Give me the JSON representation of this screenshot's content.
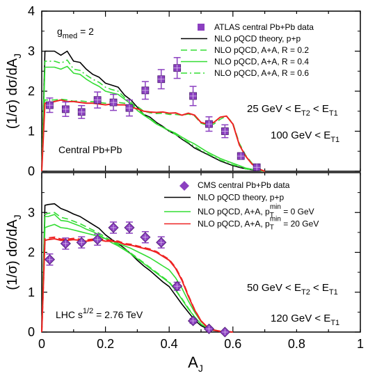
{
  "figure": {
    "x_axis_label": "A",
    "x_axis_label_sub": "J",
    "x_ticks": [
      "0",
      "0.2",
      "0.4",
      "0.6",
      "0.8",
      "1"
    ]
  },
  "chart_data": [
    {
      "type": "line",
      "panel": "top",
      "title": "",
      "xlabel": "A_J",
      "ylabel": "(1/σ) dσ/dA_J",
      "xlim": [
        0,
        1
      ],
      "ylim": [
        0,
        4
      ],
      "y_ticks": [
        "0",
        "1",
        "2",
        "3",
        "4"
      ],
      "grid": false,
      "legend_position": "top-right",
      "annotations": {
        "gmed": "g",
        "gmed_sub": "med",
        "gmed_value": " = 2",
        "cond1_a": "25 GeV < E",
        "cond1_sub_a": "T2",
        "cond1_b": " < E",
        "cond1_sub_b": "T1",
        "cond2_a": "100 GeV < E",
        "cond2_sub_a": "T1",
        "system": "Central Pb+Pb"
      },
      "data_series": {
        "name": "ATLAS central Pb+Pb data",
        "color": "#8b3fc0",
        "x": [
          0.025,
          0.075,
          0.125,
          0.175,
          0.225,
          0.275,
          0.325,
          0.375,
          0.425,
          0.475,
          0.525,
          0.575,
          0.625,
          0.675
        ],
        "y": [
          1.65,
          1.55,
          1.48,
          1.78,
          1.72,
          1.58,
          2.02,
          2.3,
          2.58,
          1.88,
          1.18,
          1.0,
          0.38,
          0.1
        ],
        "err": [
          0.18,
          0.18,
          0.16,
          0.2,
          0.2,
          0.2,
          0.22,
          0.24,
          0.26,
          0.24,
          0.18,
          0.16,
          0.08,
          0.05
        ]
      },
      "series": [
        {
          "name": "NLO pQCD theory, p+p",
          "color": "#000000",
          "dash": "solid",
          "x": [
            0.0,
            0.01,
            0.02,
            0.04,
            0.06,
            0.08,
            0.1,
            0.12,
            0.14,
            0.16,
            0.18,
            0.2,
            0.22,
            0.24,
            0.26,
            0.28,
            0.3,
            0.32,
            0.34,
            0.36,
            0.38,
            0.4,
            0.42,
            0.44,
            0.46,
            0.48,
            0.5,
            0.52,
            0.54,
            0.56,
            0.58,
            0.6,
            0.62,
            0.64,
            0.66,
            0.68,
            0.7
          ],
          "y": [
            0.0,
            3.0,
            3.0,
            3.0,
            2.9,
            3.0,
            2.75,
            2.72,
            2.55,
            2.42,
            2.35,
            2.2,
            2.15,
            2.1,
            1.9,
            1.78,
            1.6,
            1.42,
            1.35,
            1.22,
            1.12,
            1.0,
            0.92,
            0.8,
            0.7,
            0.58,
            0.5,
            0.42,
            0.34,
            0.26,
            0.2,
            0.14,
            0.1,
            0.06,
            0.04,
            0.02,
            0.0
          ]
        },
        {
          "name": "NLO pQCD, A+A, R = 0.2",
          "color": "#33dd33",
          "dash": "dash",
          "x": [
            0.0,
            0.01,
            0.02,
            0.04,
            0.06,
            0.08,
            0.1,
            0.12,
            0.14,
            0.16,
            0.18,
            0.2,
            0.22,
            0.24,
            0.26,
            0.28,
            0.3,
            0.32,
            0.34,
            0.36,
            0.38,
            0.4,
            0.42,
            0.44,
            0.46,
            0.48,
            0.5,
            0.52,
            0.54,
            0.56,
            0.58,
            0.6,
            0.62,
            0.64,
            0.66,
            0.68,
            0.7
          ],
          "y": [
            0.0,
            1.78,
            1.78,
            1.78,
            1.8,
            1.78,
            1.75,
            1.76,
            1.74,
            1.74,
            1.72,
            1.7,
            1.74,
            1.72,
            1.7,
            1.68,
            1.62,
            1.5,
            1.46,
            1.44,
            1.45,
            1.42,
            1.42,
            1.4,
            1.43,
            1.38,
            1.2,
            1.15,
            1.18,
            1.3,
            1.38,
            1.2,
            0.7,
            0.4,
            0.2,
            0.08,
            0.0
          ]
        },
        {
          "name": "NLO pQCD, A+A, R = 0.4",
          "color": "#33dd33",
          "dash": "solid",
          "x": [
            0.0,
            0.01,
            0.02,
            0.04,
            0.06,
            0.08,
            0.1,
            0.12,
            0.14,
            0.16,
            0.18,
            0.2,
            0.22,
            0.24,
            0.26,
            0.28,
            0.3,
            0.32,
            0.34,
            0.36,
            0.38,
            0.4,
            0.42,
            0.44,
            0.46,
            0.48,
            0.5,
            0.52,
            0.54,
            0.56,
            0.58,
            0.6,
            0.62,
            0.64,
            0.66,
            0.68,
            0.7
          ],
          "y": [
            0.0,
            2.6,
            2.6,
            2.6,
            2.55,
            2.62,
            2.45,
            2.42,
            2.3,
            2.2,
            2.12,
            2.0,
            1.96,
            1.92,
            1.8,
            1.68,
            1.52,
            1.4,
            1.3,
            1.18,
            1.1,
            1.02,
            0.95,
            0.85,
            0.76,
            0.68,
            0.58,
            0.48,
            0.4,
            0.32,
            0.26,
            0.2,
            0.14,
            0.08,
            0.05,
            0.02,
            0.0
          ]
        },
        {
          "name": "NLO pQCD, A+A, R = 0.6",
          "color": "#33dd33",
          "dash": "dashdot",
          "x": [
            0.0,
            0.01,
            0.02,
            0.04,
            0.06,
            0.08,
            0.1,
            0.12,
            0.14,
            0.16,
            0.18,
            0.2,
            0.22,
            0.24,
            0.26,
            0.28,
            0.3,
            0.32,
            0.34,
            0.36,
            0.38,
            0.4,
            0.42,
            0.44,
            0.46,
            0.48,
            0.5,
            0.52,
            0.54,
            0.56,
            0.58,
            0.6,
            0.62,
            0.64,
            0.66,
            0.68,
            0.7
          ],
          "y": [
            0.0,
            2.75,
            2.75,
            2.75,
            2.7,
            2.78,
            2.55,
            2.52,
            2.4,
            2.3,
            2.22,
            2.1,
            2.04,
            2.0,
            1.84,
            1.72,
            1.56,
            1.42,
            1.32,
            1.2,
            1.1,
            1.0,
            0.92,
            0.82,
            0.72,
            0.62,
            0.52,
            0.44,
            0.36,
            0.28,
            0.22,
            0.16,
            0.12,
            0.06,
            0.04,
            0.02,
            0.0
          ]
        },
        {
          "name": "",
          "color": "#ee2222",
          "dash": "solid",
          "x": [
            0.0,
            0.01,
            0.02,
            0.04,
            0.06,
            0.08,
            0.1,
            0.12,
            0.14,
            0.16,
            0.18,
            0.2,
            0.22,
            0.24,
            0.26,
            0.28,
            0.3,
            0.32,
            0.34,
            0.36,
            0.38,
            0.4,
            0.42,
            0.44,
            0.46,
            0.48,
            0.5,
            0.52,
            0.54,
            0.56,
            0.58,
            0.6,
            0.62,
            0.64,
            0.66,
            0.68,
            0.7
          ],
          "y": [
            0.0,
            1.7,
            1.7,
            1.74,
            1.78,
            1.74,
            1.74,
            1.72,
            1.7,
            1.7,
            1.68,
            1.66,
            1.68,
            1.66,
            1.66,
            1.6,
            1.56,
            1.5,
            1.48,
            1.47,
            1.48,
            1.45,
            1.46,
            1.4,
            1.45,
            1.4,
            1.22,
            1.18,
            1.22,
            1.35,
            1.38,
            1.18,
            0.66,
            0.38,
            0.18,
            0.06,
            0.0
          ]
        }
      ]
    },
    {
      "type": "line",
      "panel": "bottom",
      "title": "",
      "xlabel": "A_J",
      "ylabel": "(1/σ) dσ/dA_J",
      "xlim": [
        0,
        1
      ],
      "ylim": [
        0,
        4
      ],
      "y_ticks": [
        "0",
        "1",
        "2",
        "3"
      ],
      "grid": false,
      "legend_position": "top-right",
      "annotations": {
        "cond1_a": "50 GeV < E",
        "cond1_sub_a": "T2",
        "cond1_b": " < E",
        "cond1_sub_b": "T1",
        "cond2_a": "120 GeV < E",
        "cond2_sub_a": "T1",
        "lhc_a": "LHC s",
        "lhc_sup": "1/2",
        "lhc_b": " = 2.76 TeV"
      },
      "data_series": {
        "name": "CMS central Pb+Pb data",
        "color": "#8b3fc0",
        "x": [
          0.025,
          0.075,
          0.125,
          0.175,
          0.225,
          0.275,
          0.325,
          0.375,
          0.425,
          0.475,
          0.525,
          0.575
        ],
        "y": [
          1.82,
          2.22,
          2.25,
          2.32,
          2.62,
          2.62,
          2.38,
          2.25,
          1.15,
          0.28,
          0.08,
          0.0
        ],
        "err": [
          0.14,
          0.14,
          0.14,
          0.14,
          0.14,
          0.14,
          0.14,
          0.14,
          0.1,
          0.06,
          0.03,
          0.02
        ]
      },
      "series": [
        {
          "name": "NLO pQCD theory, p+p",
          "color": "#000000",
          "dash": "solid",
          "x": [
            0.0,
            0.01,
            0.02,
            0.04,
            0.06,
            0.08,
            0.1,
            0.12,
            0.14,
            0.16,
            0.18,
            0.2,
            0.22,
            0.24,
            0.26,
            0.28,
            0.3,
            0.32,
            0.34,
            0.36,
            0.38,
            0.4,
            0.42,
            0.44,
            0.46,
            0.48,
            0.5,
            0.52,
            0.54,
            0.56,
            0.58,
            0.6
          ],
          "y": [
            0.0,
            3.18,
            3.2,
            3.22,
            3.1,
            3.04,
            2.96,
            2.9,
            2.8,
            2.7,
            2.6,
            2.44,
            2.32,
            2.22,
            2.1,
            1.96,
            1.8,
            1.66,
            1.54,
            1.4,
            1.26,
            1.14,
            0.92,
            0.7,
            0.5,
            0.3,
            0.16,
            0.08,
            0.04,
            0.02,
            0.01,
            0.0
          ]
        },
        {
          "name": "NLO pQCD, A+A, p_T^min = 0 GeV",
          "color": "#33dd33",
          "dash": "solid",
          "x": [
            0.0,
            0.01,
            0.02,
            0.04,
            0.06,
            0.08,
            0.1,
            0.12,
            0.14,
            0.16,
            0.18,
            0.2,
            0.22,
            0.24,
            0.26,
            0.28,
            0.3,
            0.32,
            0.34,
            0.36,
            0.38,
            0.4,
            0.42,
            0.44,
            0.46,
            0.48,
            0.5,
            0.52,
            0.54,
            0.56,
            0.58,
            0.6
          ],
          "y": [
            0.0,
            2.9,
            2.9,
            2.95,
            2.8,
            2.78,
            2.72,
            2.66,
            2.58,
            2.52,
            2.44,
            2.34,
            2.24,
            2.16,
            2.06,
            1.96,
            1.84,
            1.72,
            1.6,
            1.48,
            1.36,
            1.24,
            1.05,
            0.82,
            0.58,
            0.38,
            0.2,
            0.1,
            0.05,
            0.02,
            0.01,
            0.0
          ]
        },
        {
          "name": "",
          "color": "#33dd33",
          "dash": "dash",
          "x": [
            0.0,
            0.01,
            0.02,
            0.04,
            0.06,
            0.08,
            0.1,
            0.12,
            0.14,
            0.16,
            0.18,
            0.2,
            0.22,
            0.24,
            0.26,
            0.28,
            0.3,
            0.32,
            0.34,
            0.36,
            0.38,
            0.4,
            0.42,
            0.44,
            0.46,
            0.48,
            0.5,
            0.52,
            0.54,
            0.56,
            0.58,
            0.6
          ],
          "y": [
            0.0,
            2.95,
            2.98,
            3.0,
            2.88,
            2.84,
            2.78,
            2.72,
            2.64,
            2.56,
            2.48,
            2.38,
            2.28,
            2.18,
            2.08,
            1.98,
            1.86,
            1.74,
            1.62,
            1.5,
            1.38,
            1.26,
            1.06,
            0.84,
            0.6,
            0.38,
            0.2,
            0.1,
            0.05,
            0.02,
            0.01,
            0.0
          ]
        },
        {
          "name": "",
          "color": "#33dd33",
          "dash": "solid",
          "x": [
            0.0,
            0.01,
            0.02,
            0.04,
            0.06,
            0.08,
            0.1,
            0.12,
            0.14,
            0.16,
            0.18,
            0.2,
            0.22,
            0.24,
            0.26,
            0.28,
            0.3,
            0.32,
            0.34,
            0.36,
            0.38,
            0.4,
            0.42,
            0.44,
            0.46,
            0.48,
            0.5,
            0.52,
            0.54,
            0.56,
            0.58,
            0.6
          ],
          "y": [
            0.0,
            2.62,
            2.65,
            2.7,
            2.62,
            2.6,
            2.56,
            2.52,
            2.48,
            2.44,
            2.4,
            2.34,
            2.28,
            2.22,
            2.16,
            2.1,
            2.02,
            1.94,
            1.86,
            1.76,
            1.66,
            1.56,
            1.36,
            1.1,
            0.78,
            0.5,
            0.26,
            0.12,
            0.06,
            0.02,
            0.01,
            0.0
          ]
        },
        {
          "name": "NLO pQCD, A+A, p_T^min = 20 GeV",
          "color": "#ee2222",
          "dash": "solid",
          "x": [
            0.0,
            0.01,
            0.02,
            0.04,
            0.06,
            0.08,
            0.1,
            0.12,
            0.14,
            0.16,
            0.18,
            0.2,
            0.22,
            0.24,
            0.26,
            0.28,
            0.3,
            0.32,
            0.34,
            0.36,
            0.38,
            0.4,
            0.42,
            0.44,
            0.46,
            0.48,
            0.5,
            0.52,
            0.54,
            0.56,
            0.58,
            0.6
          ],
          "y": [
            0.0,
            2.3,
            2.32,
            2.34,
            2.3,
            2.3,
            2.32,
            2.3,
            2.28,
            2.3,
            2.32,
            2.28,
            2.28,
            2.26,
            2.2,
            2.18,
            2.14,
            2.1,
            2.06,
            2.0,
            1.9,
            1.8,
            1.6,
            1.3,
            0.9,
            0.55,
            0.28,
            0.12,
            0.05,
            0.02,
            0.01,
            0.0
          ]
        },
        {
          "name": "",
          "color": "#ee2222",
          "dash": "dash",
          "x": [
            0.0,
            0.01,
            0.02,
            0.04,
            0.06,
            0.08,
            0.1,
            0.12,
            0.14,
            0.16,
            0.18,
            0.2,
            0.22,
            0.24,
            0.26,
            0.28,
            0.3,
            0.32,
            0.34,
            0.36,
            0.38,
            0.4,
            0.42,
            0.44,
            0.46,
            0.48,
            0.5,
            0.52,
            0.54,
            0.56,
            0.58,
            0.6
          ],
          "y": [
            0.0,
            2.34,
            2.36,
            2.38,
            2.33,
            2.33,
            2.35,
            2.33,
            2.31,
            2.33,
            2.35,
            2.31,
            2.3,
            2.28,
            2.22,
            2.2,
            2.16,
            2.12,
            2.08,
            2.02,
            1.92,
            1.82,
            1.62,
            1.32,
            0.92,
            0.56,
            0.28,
            0.12,
            0.05,
            0.02,
            0.01,
            0.0
          ]
        }
      ],
      "legend_sup": "min",
      "legend_items": [
        {
          "pre": "NLO pQCD, A+A, p",
          "sub": "T",
          "post": " = 0 GeV"
        },
        {
          "pre": "NLO pQCD, A+A, p",
          "sub": "T",
          "post": " = 20 GeV"
        }
      ]
    }
  ]
}
